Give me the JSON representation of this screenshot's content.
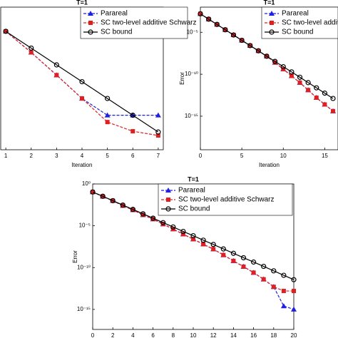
{
  "chart_data": [
    {
      "type": "line",
      "title": "T=1",
      "x_label": "Iteration",
      "log_y": true,
      "legend": "upper right",
      "xlim": [
        0.8,
        7.2
      ],
      "ylim": [
        1e-17,
        1
      ],
      "xticks": [
        1,
        2,
        3,
        4,
        5,
        6,
        7
      ],
      "x": [
        1,
        2,
        3,
        4,
        5,
        6,
        7
      ],
      "series": [
        {
          "name": "Parareal",
          "color": "#1f1fe0",
          "marker": "triangle",
          "linestyle": "dashed",
          "values": [
            0.0013,
            4e-06,
            7.9e-09,
            1.3e-11,
            1.3e-13,
            1.3e-13,
            1.3e-13
          ]
        },
        {
          "name": "SC two-level additive Schwarz",
          "color": "#e02020",
          "marker": "square",
          "linestyle": "dashed",
          "values": [
            0.0013,
            4e-06,
            7.9e-09,
            1.3e-11,
            2e-14,
            1.6e-15,
            5e-16
          ]
        },
        {
          "name": "SC bound",
          "color": "#000000",
          "marker": "circle",
          "linestyle": "solid",
          "values": [
            0.0013,
            1.3e-05,
            1.3e-07,
            1.3e-09,
            1.3e-11,
            1.3e-13,
            1.3e-15
          ]
        }
      ]
    },
    {
      "type": "line",
      "title": "T=1",
      "x_label": "Iteration",
      "y_label": "Error",
      "log_y": true,
      "legend": "upper right",
      "xlim": [
        0,
        16.6
      ],
      "ylim": [
        1e-19,
        0.01
      ],
      "xticks": [
        0,
        5,
        10,
        15
      ],
      "yticks": [
        {
          "value": 1e-05,
          "label": "10⁻⁵"
        },
        {
          "value": 1e-10,
          "label": "10⁻¹⁰"
        },
        {
          "value": 1e-15,
          "label": "10⁻¹⁵"
        }
      ],
      "x": [
        0,
        1,
        2,
        3,
        4,
        5,
        6,
        7,
        8,
        9,
        10,
        11,
        12,
        13,
        14,
        15,
        16
      ],
      "series": [
        {
          "name": "Parareal",
          "color": "#1f1fe0",
          "marker": "triangle",
          "linestyle": "dashed",
          "values": [
            0.0016,
            0.00037,
            8.7e-05,
            2e-05,
            4.8e-06,
            1.1e-06,
            2.6e-07,
            6.2e-08,
            1.4e-08,
            2.5e-09,
            4e-10,
            6.3e-11,
            1e-11,
            1.3e-12,
            1.6e-13,
            2.5e-14,
            4e-15
          ]
        },
        {
          "name": "SC two-level additive Schwarz",
          "color": "#e02020",
          "marker": "square",
          "linestyle": "dashed",
          "values": [
            0.0016,
            0.00037,
            8.7e-05,
            2e-05,
            4.8e-06,
            1.1e-06,
            2.6e-07,
            6.2e-08,
            1.4e-08,
            2.5e-09,
            4e-10,
            6.3e-11,
            1e-11,
            1.3e-12,
            1.6e-13,
            2.5e-14,
            4e-15
          ]
        },
        {
          "name": "SC bound",
          "color": "#000000",
          "marker": "circle",
          "linestyle": "solid",
          "values": [
            0.0016,
            0.00037,
            8.7e-05,
            2e-05,
            4.8e-06,
            1.1e-06,
            2.6e-07,
            6.2e-08,
            1.4e-08,
            3.4e-09,
            7.9e-10,
            1.9e-10,
            4.4e-11,
            1e-11,
            2.4e-12,
            5.6e-13,
            1.3e-13
          ]
        }
      ]
    },
    {
      "type": "line",
      "title": "T=1",
      "x_label": "Iteration",
      "y_label": "Error",
      "log_y": true,
      "legend": "upper right",
      "xlim": [
        0,
        20
      ],
      "ylim": [
        4e-18,
        1
      ],
      "xticks": [
        0,
        2,
        4,
        6,
        8,
        10,
        12,
        14,
        16,
        18,
        20
      ],
      "yticks": [
        {
          "value": 1,
          "label": "10⁰"
        },
        {
          "value": 1e-05,
          "label": "10⁻⁵"
        },
        {
          "value": 1e-10,
          "label": "10⁻¹⁰"
        },
        {
          "value": 1e-15,
          "label": "10⁻¹⁵"
        }
      ],
      "x": [
        0,
        1,
        2,
        3,
        4,
        5,
        6,
        7,
        8,
        9,
        10,
        11,
        12,
        13,
        14,
        15,
        16,
        17,
        18,
        19,
        20
      ],
      "series": [
        {
          "name": "Parareal",
          "color": "#1f1fe0",
          "marker": "triangle",
          "linestyle": "dashed",
          "values": [
            0.11,
            0.032,
            0.01,
            0.0025,
            0.00079,
            0.0002,
            6.3e-05,
            1.6e-05,
            4e-06,
            1e-06,
            2.5e-07,
            6.3e-08,
            1.6e-08,
            3.2e-09,
            6.3e-10,
            1.3e-10,
            2.5e-11,
            4e-12,
            5e-13,
            2.5e-15,
            1e-15
          ]
        },
        {
          "name": "SC two-level additive Schwarz",
          "color": "#e02020",
          "marker": "square",
          "linestyle": "dashed",
          "values": [
            0.11,
            0.032,
            0.01,
            0.0025,
            0.00079,
            0.0002,
            6.3e-05,
            1.6e-05,
            4e-06,
            1e-06,
            2.5e-07,
            6.3e-08,
            1.6e-08,
            3.2e-09,
            6.3e-10,
            1.3e-10,
            2.5e-11,
            4e-12,
            5e-13,
            1.6e-13,
            1.6e-13
          ]
        },
        {
          "name": "SC bound",
          "color": "#000000",
          "marker": "circle",
          "linestyle": "solid",
          "values": [
            0.11,
            0.034,
            0.01,
            0.003,
            0.00091,
            0.00027,
            8.1e-05,
            2.4e-05,
            7.2e-06,
            2.1e-06,
            6.5e-07,
            1.9e-07,
            5.8e-08,
            1.7e-08,
            5.1e-09,
            1.5e-09,
            4.6e-10,
            1.4e-10,
            4.1e-11,
            1.2e-11,
            3.6e-12
          ]
        }
      ]
    }
  ]
}
